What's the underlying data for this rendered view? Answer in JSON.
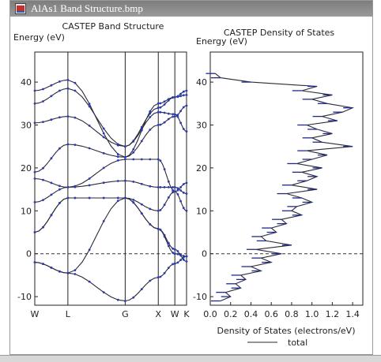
{
  "window": {
    "title": "AlAs1 Band Structure.bmp"
  },
  "chart_data": [
    {
      "type": "line",
      "title": "CASTEP Band Structure",
      "ylabel": "Energy (eV)",
      "ylim": [
        -12,
        47
      ],
      "yticks": [
        -10,
        0,
        10,
        20,
        30,
        40
      ],
      "kpoints": [
        "W",
        "L",
        "G",
        "X",
        "W",
        "K"
      ],
      "kpos": [
        0,
        0.5,
        1.366,
        1.866,
        2.116,
        2.293
      ],
      "fermi_level": 0,
      "series": [
        {
          "values": [
            -2.0,
            -4.5,
            -11.0,
            -5.5,
            -2.3,
            -0.6
          ]
        },
        {
          "values": [
            -2.0,
            -4.5,
            13.0,
            5.8,
            0.0,
            -0.6
          ]
        },
        {
          "values": [
            5.0,
            13.0,
            13.0,
            5.8,
            1.0,
            -1.8
          ]
        },
        {
          "values": [
            5.0,
            13.0,
            13.0,
            10.0,
            14.5,
            10.0
          ]
        },
        {
          "values": [
            12.0,
            15.5,
            17.0,
            15.5,
            15.5,
            14.0
          ]
        },
        {
          "values": [
            17.5,
            15.5,
            22.0,
            22.0,
            14.5,
            16.5
          ]
        },
        {
          "values": [
            19.0,
            25.5,
            22.5,
            30.0,
            32.0,
            34.5
          ]
        },
        {
          "values": [
            30.5,
            32.0,
            25.0,
            33.0,
            32.5,
            28.5
          ]
        },
        {
          "values": [
            35.0,
            38.5,
            25.0,
            34.0,
            36.5,
            37.0
          ]
        },
        {
          "values": [
            38.0,
            40.5,
            22.5,
            35.0,
            36.5,
            38.0
          ]
        }
      ]
    },
    {
      "type": "line",
      "title": "CASTEP Density of States",
      "ylabel": "Energy (eV)",
      "xlabel": "Density of States (electrons/eV)",
      "xlim": [
        0,
        1.5
      ],
      "ylim": [
        -12,
        47
      ],
      "xticks": [
        "0.0",
        "0.2",
        "0.4",
        "0.6",
        "0.8",
        "1.0",
        "1.2",
        "1.4"
      ],
      "yticks": [
        -10,
        0,
        10,
        20,
        30,
        40
      ],
      "fermi_level": 0,
      "legend": {
        "label": "total",
        "position": "bottom"
      },
      "energy": [
        -11.0,
        -10.0,
        -9.0,
        -8.0,
        -7.0,
        -6.0,
        -5.0,
        -4.0,
        -3.0,
        -2.0,
        -1.0,
        0.0,
        1.0,
        2.0,
        3.0,
        4.0,
        5.0,
        6.0,
        7.0,
        8.0,
        9.0,
        10.0,
        11.0,
        12.0,
        13.0,
        14.0,
        15.0,
        16.0,
        17.0,
        18.0,
        19.0,
        20.0,
        21.0,
        22.0,
        23.0,
        24.0,
        25.0,
        26.0,
        27.0,
        28.0,
        29.0,
        30.0,
        31.0,
        32.0,
        33.0,
        34.0,
        35.0,
        36.0,
        37.0,
        38.0,
        39.0,
        40.0,
        41.0,
        42.0
      ],
      "dos": [
        0.1,
        0.2,
        0.15,
        0.3,
        0.25,
        0.35,
        0.3,
        0.5,
        0.4,
        0.6,
        0.5,
        0.7,
        0.45,
        0.8,
        0.55,
        0.5,
        0.65,
        0.6,
        0.75,
        0.7,
        0.9,
        0.8,
        0.85,
        1.0,
        0.9,
        0.75,
        1.05,
        0.8,
        0.95,
        1.05,
        0.9,
        1.1,
        0.85,
        1.0,
        1.15,
        0.95,
        1.4,
        1.1,
        1.0,
        1.2,
        1.05,
        0.95,
        1.25,
        1.1,
        1.3,
        1.4,
        1.15,
        1.0,
        1.2,
        0.9,
        1.05,
        0.4,
        0.1,
        0.05
      ]
    }
  ]
}
